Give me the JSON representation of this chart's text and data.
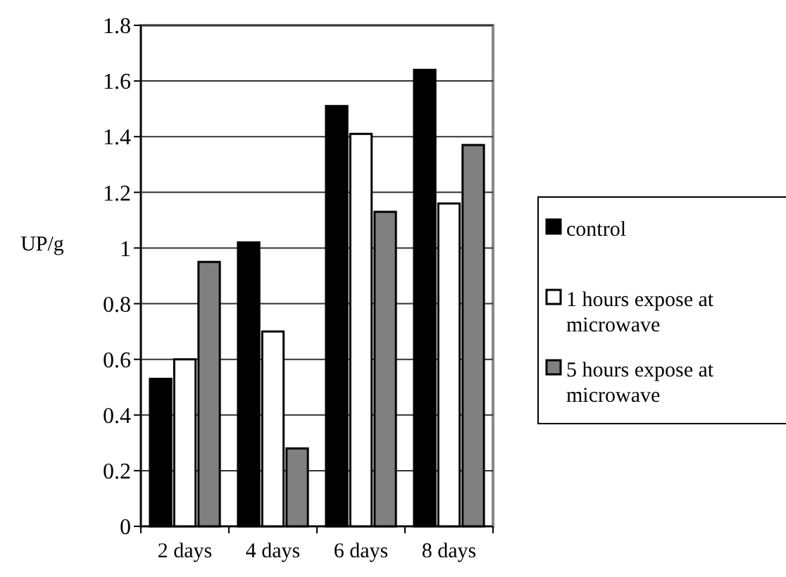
{
  "chart_data": {
    "type": "bar",
    "ylabel": "UP/g",
    "categories": [
      "2 days",
      "4 days",
      "6 days",
      "8 days"
    ],
    "series": [
      {
        "name": "control",
        "color": "#000000",
        "values": [
          0.53,
          1.02,
          1.51,
          1.64
        ]
      },
      {
        "name": "1 hours expose at microwave",
        "color": "#ffffff",
        "values": [
          0.6,
          0.7,
          1.41,
          1.16
        ]
      },
      {
        "name": "5 hours expose at microwave",
        "color": "#808080",
        "values": [
          0.95,
          0.28,
          1.13,
          1.37
        ]
      }
    ],
    "ylim": [
      0,
      1.8
    ],
    "yticks": [
      0,
      0.2,
      0.4,
      0.6,
      0.8,
      1,
      1.2,
      1.4,
      1.6,
      1.8
    ],
    "grid": "y",
    "legend": "right"
  }
}
